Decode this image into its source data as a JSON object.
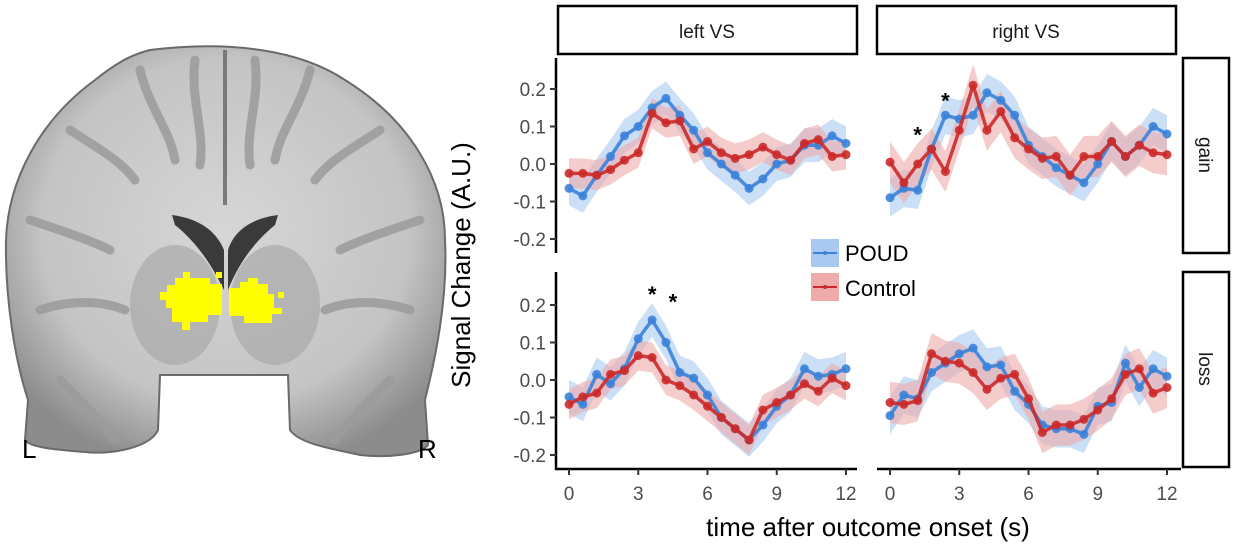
{
  "figure": {
    "brain_labels": {
      "left": "L",
      "right": "R"
    },
    "highlight_color": "#ffff00"
  },
  "chart_data": {
    "type": "line",
    "title": "",
    "xlabel": "time after outcome onset (s)",
    "ylabel": "Signal Change (A.U.)",
    "xlim": [
      0,
      12
    ],
    "ylim": [
      -0.22,
      0.27
    ],
    "x_ticks": [
      "0",
      "3",
      "6",
      "9",
      "12"
    ],
    "y_ticks": [
      "0.2",
      "0.1",
      "0.0",
      "-0.1",
      "-0.2"
    ],
    "x": [
      0,
      0.6,
      1.2,
      1.8,
      2.4,
      3.0,
      3.6,
      4.2,
      4.8,
      5.4,
      6.0,
      6.6,
      7.2,
      7.8,
      8.4,
      9.0,
      9.6,
      10.2,
      10.8,
      11.4,
      12.0
    ],
    "legend": {
      "position": "center",
      "entries": [
        {
          "name": "POUD",
          "color": "#3b82d9",
          "fill": "#a9c9f0"
        },
        {
          "name": "Control",
          "color": "#cc2a2a",
          "fill": "#efaaaa"
        }
      ]
    },
    "columns": [
      "left VS",
      "right VS"
    ],
    "rows": [
      "gain",
      "loss"
    ],
    "panels": [
      {
        "column": "left VS",
        "row": "gain",
        "significance": [],
        "series": [
          {
            "name": "POUD",
            "values": [
              -0.065,
              -0.085,
              -0.03,
              0.02,
              0.075,
              0.1,
              0.15,
              0.175,
              0.13,
              0.09,
              0.03,
              0.0,
              -0.03,
              -0.065,
              -0.04,
              0.0,
              0.01,
              0.05,
              0.05,
              0.075,
              0.055
            ],
            "band": 0.045
          },
          {
            "name": "Control",
            "values": [
              -0.025,
              -0.025,
              -0.03,
              -0.015,
              0.01,
              0.03,
              0.135,
              0.11,
              0.115,
              0.04,
              0.06,
              0.03,
              0.015,
              0.025,
              0.045,
              0.025,
              0.01,
              0.055,
              0.065,
              0.02,
              0.025
            ],
            "band": 0.04
          }
        ]
      },
      {
        "column": "right VS",
        "row": "gain",
        "significance": [
          {
            "x": 1.2,
            "y": 0.09,
            "label": "*"
          },
          {
            "x": 2.4,
            "y": 0.18,
            "label": "*"
          }
        ],
        "series": [
          {
            "name": "POUD",
            "values": [
              -0.09,
              -0.065,
              -0.07,
              0.04,
              0.13,
              0.12,
              0.13,
              0.19,
              0.17,
              0.13,
              0.05,
              0.02,
              -0.01,
              -0.03,
              -0.05,
              0.0,
              0.06,
              0.02,
              0.05,
              0.1,
              0.08
            ],
            "band": 0.05
          },
          {
            "name": "Control",
            "values": [
              0.005,
              -0.05,
              0.0,
              0.04,
              -0.02,
              0.09,
              0.21,
              0.09,
              0.14,
              0.07,
              0.04,
              0.015,
              0.02,
              -0.03,
              0.02,
              0.02,
              0.06,
              0.02,
              0.05,
              0.03,
              0.025
            ],
            "band": 0.055
          }
        ]
      },
      {
        "column": "left VS",
        "row": "loss",
        "significance": [
          {
            "x": 3.6,
            "y": 0.24,
            "label": "*"
          },
          {
            "x": 4.5,
            "y": 0.22,
            "label": "*"
          }
        ],
        "series": [
          {
            "name": "POUD",
            "values": [
              -0.045,
              -0.065,
              0.015,
              -0.01,
              0.03,
              0.11,
              0.16,
              0.1,
              0.02,
              0.005,
              -0.04,
              -0.1,
              -0.13,
              -0.16,
              -0.12,
              -0.07,
              -0.04,
              0.03,
              0.01,
              0.015,
              0.03
            ],
            "band": 0.045
          },
          {
            "name": "Control",
            "values": [
              -0.065,
              -0.045,
              -0.035,
              0.015,
              0.025,
              0.065,
              0.06,
              0.0,
              -0.015,
              -0.04,
              -0.07,
              -0.1,
              -0.13,
              -0.16,
              -0.08,
              -0.06,
              -0.04,
              -0.01,
              -0.03,
              0.005,
              -0.015
            ],
            "band": 0.04
          }
        ]
      },
      {
        "column": "right VS",
        "row": "loss",
        "significance": [],
        "series": [
          {
            "name": "POUD",
            "values": [
              -0.095,
              -0.04,
              -0.05,
              0.02,
              0.045,
              0.07,
              0.085,
              0.035,
              0.04,
              -0.03,
              -0.065,
              -0.12,
              -0.13,
              -0.13,
              -0.145,
              -0.07,
              -0.06,
              0.045,
              -0.02,
              0.03,
              0.01
            ],
            "band": 0.05
          },
          {
            "name": "Control",
            "values": [
              -0.06,
              -0.065,
              -0.055,
              0.07,
              0.05,
              0.045,
              0.02,
              -0.025,
              0.005,
              0.015,
              -0.05,
              -0.14,
              -0.12,
              -0.12,
              -0.105,
              -0.08,
              -0.05,
              0.015,
              0.03,
              -0.035,
              -0.02
            ],
            "band": 0.055
          }
        ]
      }
    ]
  }
}
